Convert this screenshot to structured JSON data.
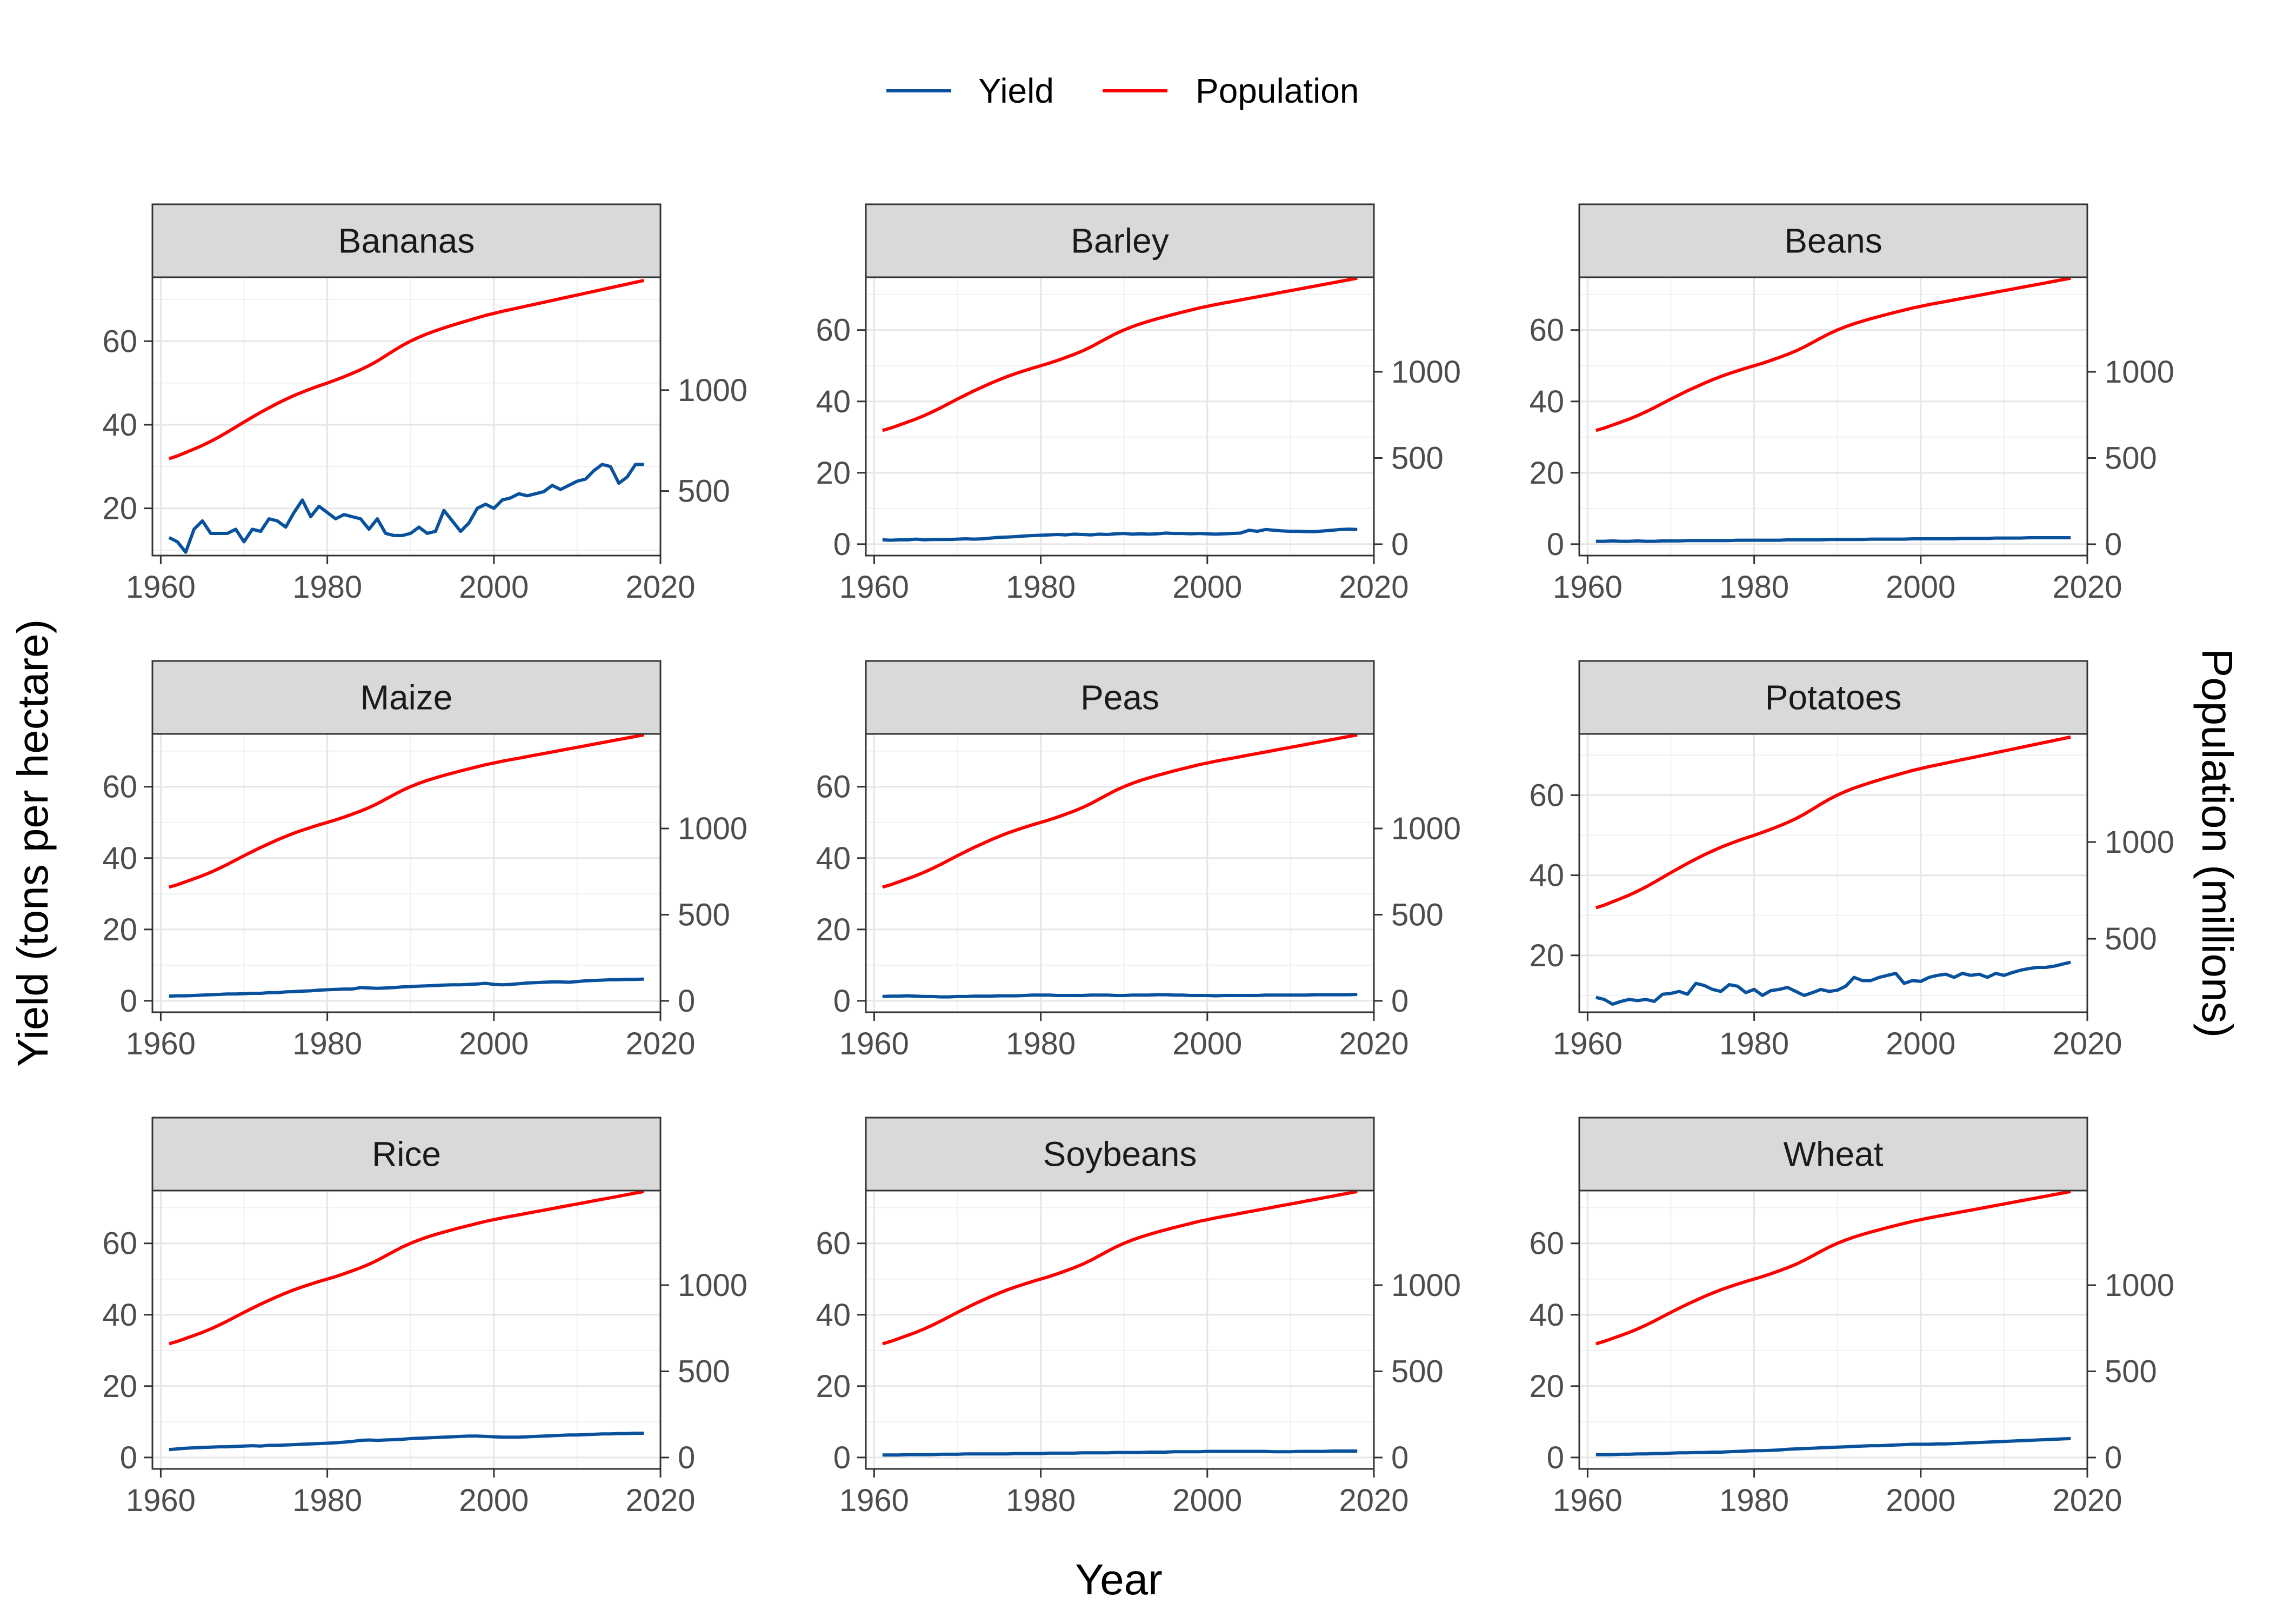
{
  "chart_data": {
    "type": "line",
    "layout": "facet-grid-3x3",
    "xlabel": "Year",
    "ylabel_left": "Yield (tons per hectare)",
    "ylabel_right": "Population (millions)",
    "legend": {
      "position": "top",
      "entries": [
        {
          "name": "Yield",
          "color": "#08519c"
        },
        {
          "name": "Population",
          "color": "#ff0000"
        }
      ]
    },
    "x_ticks": [
      1960,
      1980,
      2000,
      2020
    ],
    "xlim": [
      1959,
      2020
    ],
    "grid": true,
    "years": [
      1961,
      1962,
      1963,
      1964,
      1965,
      1966,
      1967,
      1968,
      1969,
      1970,
      1971,
      1972,
      1973,
      1974,
      1975,
      1976,
      1977,
      1978,
      1979,
      1980,
      1981,
      1982,
      1983,
      1984,
      1985,
      1986,
      1987,
      1988,
      1989,
      1990,
      1991,
      1992,
      1993,
      1994,
      1995,
      1996,
      1997,
      1998,
      1999,
      2000,
      2001,
      2002,
      2003,
      2004,
      2005,
      2006,
      2007,
      2008,
      2009,
      2010,
      2011,
      2012,
      2013,
      2014,
      2015,
      2016,
      2017,
      2018
    ],
    "population_millions": [
      660,
      674,
      691,
      708,
      726,
      746,
      768,
      792,
      817,
      842,
      866,
      890,
      912,
      934,
      954,
      973,
      990,
      1006,
      1021,
      1035,
      1050,
      1066,
      1083,
      1101,
      1121,
      1144,
      1170,
      1196,
      1221,
      1243,
      1262,
      1279,
      1294,
      1308,
      1321,
      1334,
      1346,
      1358,
      1370,
      1380,
      1390,
      1399,
      1408,
      1417,
      1426,
      1435,
      1444,
      1453,
      1462,
      1471,
      1480,
      1489,
      1498,
      1507,
      1516,
      1525,
      1534,
      1543
    ],
    "panels": [
      {
        "name": "Bananas",
        "ylim": [
          8.7,
          75.3
        ],
        "y_ticks": [
          20,
          40,
          60
        ],
        "pop_ticks": [
          500,
          1000
        ],
        "yield": [
          13,
          12,
          9.5,
          15,
          17,
          14,
          14,
          14,
          15,
          12,
          15,
          14.5,
          17.5,
          17,
          15.5,
          19,
          22,
          18,
          20.5,
          19,
          17.5,
          18.5,
          18,
          17.5,
          15,
          17.5,
          14,
          13.5,
          13.5,
          14,
          15.5,
          14,
          14.5,
          19.5,
          17,
          14.5,
          16.5,
          20,
          21,
          20,
          22,
          22.5,
          23.5,
          23,
          23.5,
          24,
          25.5,
          24.5,
          25.5,
          26.5,
          27,
          29,
          30.5,
          30,
          26,
          27.5,
          30.5,
          30.5
        ]
      },
      {
        "name": "Barley",
        "ylim": [
          -3.2,
          74.8
        ],
        "y_ticks": [
          0,
          20,
          40,
          60
        ],
        "pop_ticks": [
          0,
          500,
          1000
        ],
        "yield": [
          1.2,
          1.1,
          1.2,
          1.2,
          1.4,
          1.2,
          1.3,
          1.3,
          1.3,
          1.4,
          1.5,
          1.4,
          1.5,
          1.7,
          1.9,
          2,
          2.1,
          2.3,
          2.4,
          2.5,
          2.6,
          2.7,
          2.6,
          2.8,
          2.7,
          2.6,
          2.8,
          2.7,
          2.9,
          3,
          2.8,
          2.9,
          2.8,
          2.9,
          3.1,
          3,
          3,
          2.9,
          3,
          2.9,
          2.8,
          2.9,
          3,
          3.1,
          3.9,
          3.6,
          4.1,
          3.9,
          3.7,
          3.6,
          3.6,
          3.5,
          3.5,
          3.7,
          3.9,
          4.1,
          4.2,
          4.1
        ]
      },
      {
        "name": "Beans",
        "ylim": [
          -3.2,
          74.8
        ],
        "y_ticks": [
          0,
          20,
          40,
          60
        ],
        "pop_ticks": [
          0,
          500,
          1000
        ],
        "yield": [
          0.8,
          0.8,
          0.9,
          0.8,
          0.8,
          0.9,
          0.8,
          0.8,
          0.9,
          0.9,
          0.9,
          1,
          1,
          1,
          1,
          1,
          1,
          1.1,
          1.1,
          1.1,
          1.1,
          1.1,
          1.1,
          1.2,
          1.2,
          1.2,
          1.2,
          1.2,
          1.3,
          1.3,
          1.3,
          1.3,
          1.3,
          1.4,
          1.4,
          1.4,
          1.4,
          1.4,
          1.5,
          1.5,
          1.5,
          1.5,
          1.5,
          1.5,
          1.6,
          1.6,
          1.6,
          1.6,
          1.7,
          1.7,
          1.7,
          1.7,
          1.8,
          1.8,
          1.8,
          1.8,
          1.8,
          1.8
        ]
      },
      {
        "name": "Maize",
        "ylim": [
          -3.2,
          74.8
        ],
        "y_ticks": [
          0,
          20,
          40,
          60
        ],
        "pop_ticks": [
          0,
          500,
          1000
        ],
        "yield": [
          1.3,
          1.4,
          1.4,
          1.5,
          1.6,
          1.7,
          1.8,
          1.9,
          1.9,
          2,
          2.1,
          2.1,
          2.3,
          2.3,
          2.5,
          2.6,
          2.7,
          2.8,
          3,
          3.1,
          3.2,
          3.3,
          3.3,
          3.7,
          3.6,
          3.5,
          3.6,
          3.7,
          3.9,
          4,
          4.1,
          4.2,
          4.3,
          4.4,
          4.5,
          4.5,
          4.6,
          4.7,
          4.9,
          4.6,
          4.5,
          4.6,
          4.8,
          5,
          5.1,
          5.2,
          5.3,
          5.3,
          5.2,
          5.4,
          5.6,
          5.7,
          5.8,
          5.9,
          5.9,
          6,
          6,
          6.1
        ]
      },
      {
        "name": "Peas",
        "ylim": [
          -3.2,
          74.8
        ],
        "y_ticks": [
          0,
          20,
          40,
          60
        ],
        "pop_ticks": [
          0,
          500,
          1000
        ],
        "yield": [
          1.2,
          1.3,
          1.3,
          1.4,
          1.3,
          1.2,
          1.2,
          1.1,
          1.1,
          1.2,
          1.2,
          1.3,
          1.3,
          1.3,
          1.4,
          1.4,
          1.4,
          1.5,
          1.6,
          1.6,
          1.6,
          1.5,
          1.5,
          1.5,
          1.5,
          1.6,
          1.6,
          1.6,
          1.5,
          1.5,
          1.6,
          1.6,
          1.6,
          1.7,
          1.7,
          1.6,
          1.6,
          1.5,
          1.5,
          1.5,
          1.4,
          1.5,
          1.5,
          1.5,
          1.5,
          1.5,
          1.6,
          1.6,
          1.6,
          1.6,
          1.6,
          1.6,
          1.7,
          1.7,
          1.7,
          1.7,
          1.7,
          1.8
        ]
      },
      {
        "name": "Potatoes",
        "ylim": [
          5.8,
          75.3
        ],
        "y_ticks": [
          20,
          40,
          60
        ],
        "pop_ticks": [
          500,
          1000
        ],
        "yield": [
          9.5,
          9,
          7.8,
          8.5,
          9,
          8.7,
          9,
          8.5,
          10.3,
          10.5,
          11,
          10.3,
          13,
          12.5,
          11.5,
          11,
          12.7,
          12.3,
          10.7,
          11.5,
          10,
          11.2,
          11.5,
          12,
          11,
          10,
          10.7,
          11.5,
          11,
          11.3,
          12.3,
          14.5,
          13.7,
          13.7,
          14.5,
          15,
          15.5,
          13,
          13.7,
          13.5,
          14.5,
          15,
          15.3,
          14.5,
          15.5,
          15,
          15.3,
          14.5,
          15.5,
          15,
          15.7,
          16.3,
          16.7,
          17,
          17,
          17.3,
          17.8,
          18.3
        ]
      },
      {
        "name": "Rice",
        "ylim": [
          -3.2,
          74.8
        ],
        "y_ticks": [
          0,
          20,
          40,
          60
        ],
        "pop_ticks": [
          0,
          500,
          1000
        ],
        "yield": [
          2.2,
          2.4,
          2.6,
          2.7,
          2.8,
          2.9,
          3,
          3,
          3.1,
          3.2,
          3.3,
          3.2,
          3.4,
          3.4,
          3.5,
          3.6,
          3.7,
          3.8,
          3.9,
          4,
          4.1,
          4.3,
          4.5,
          4.8,
          4.9,
          4.8,
          4.9,
          5,
          5.1,
          5.3,
          5.4,
          5.5,
          5.6,
          5.7,
          5.8,
          5.9,
          6,
          6,
          5.9,
          5.8,
          5.7,
          5.7,
          5.7,
          5.8,
          5.9,
          6,
          6.1,
          6.2,
          6.3,
          6.3,
          6.4,
          6.5,
          6.6,
          6.6,
          6.7,
          6.7,
          6.8,
          6.8
        ]
      },
      {
        "name": "Soybeans",
        "ylim": [
          -3.2,
          74.8
        ],
        "y_ticks": [
          0,
          20,
          40,
          60
        ],
        "pop_ticks": [
          0,
          500,
          1000
        ],
        "yield": [
          0.7,
          0.7,
          0.7,
          0.8,
          0.8,
          0.8,
          0.8,
          0.9,
          0.9,
          0.9,
          1,
          1,
          1,
          1,
          1,
          1,
          1.1,
          1.1,
          1.1,
          1.1,
          1.2,
          1.2,
          1.2,
          1.2,
          1.3,
          1.3,
          1.3,
          1.3,
          1.4,
          1.4,
          1.4,
          1.4,
          1.5,
          1.5,
          1.5,
          1.6,
          1.6,
          1.6,
          1.6,
          1.7,
          1.7,
          1.7,
          1.7,
          1.7,
          1.7,
          1.7,
          1.7,
          1.6,
          1.6,
          1.6,
          1.7,
          1.7,
          1.7,
          1.7,
          1.8,
          1.8,
          1.8,
          1.8
        ]
      },
      {
        "name": "Wheat",
        "ylim": [
          -3.2,
          74.8
        ],
        "y_ticks": [
          0,
          20,
          40,
          60
        ],
        "pop_ticks": [
          0,
          500,
          1000
        ],
        "yield": [
          0.8,
          0.8,
          0.8,
          0.9,
          0.9,
          1,
          1,
          1.1,
          1.1,
          1.2,
          1.3,
          1.3,
          1.4,
          1.4,
          1.5,
          1.5,
          1.6,
          1.7,
          1.8,
          1.9,
          1.9,
          2,
          2.1,
          2.3,
          2.4,
          2.5,
          2.6,
          2.7,
          2.8,
          2.9,
          3,
          3.1,
          3.2,
          3.3,
          3.3,
          3.4,
          3.5,
          3.6,
          3.7,
          3.7,
          3.7,
          3.8,
          3.8,
          3.9,
          4,
          4.1,
          4.2,
          4.3,
          4.4,
          4.5,
          4.6,
          4.7,
          4.8,
          4.9,
          5,
          5.1,
          5.2,
          5.3
        ]
      }
    ],
    "pop_scale": {
      "slope": 0.04831,
      "intercept": -0.0157
    }
  }
}
